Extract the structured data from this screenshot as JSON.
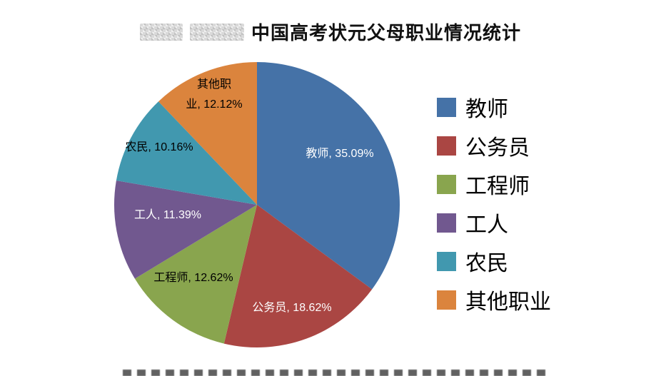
{
  "chart_data": {
    "type": "pie",
    "title": "中国高考状元父母职业情况统计",
    "categories": [
      "教师",
      "公务员",
      "工程师",
      "工人",
      "农民",
      "其他职业"
    ],
    "values": [
      35.09,
      18.62,
      12.62,
      11.39,
      10.16,
      12.12
    ],
    "colors": [
      "#4572A7",
      "#AA4643",
      "#89A54E",
      "#71588F",
      "#4198AF",
      "#DB843D"
    ],
    "slice_labels": [
      "教师, 35.09%",
      "公务员, 18.62%",
      "工程师, 12.62%",
      "工人, 11.39%",
      "农民, 10.16%",
      "其他职\n业, 12.12%"
    ],
    "legend": {
      "position": "right",
      "items": [
        "教师",
        "公务员",
        "工程师",
        "工人",
        "农民",
        "其他职业"
      ]
    },
    "start_angle_deg": 0,
    "direction": "clockwise"
  }
}
